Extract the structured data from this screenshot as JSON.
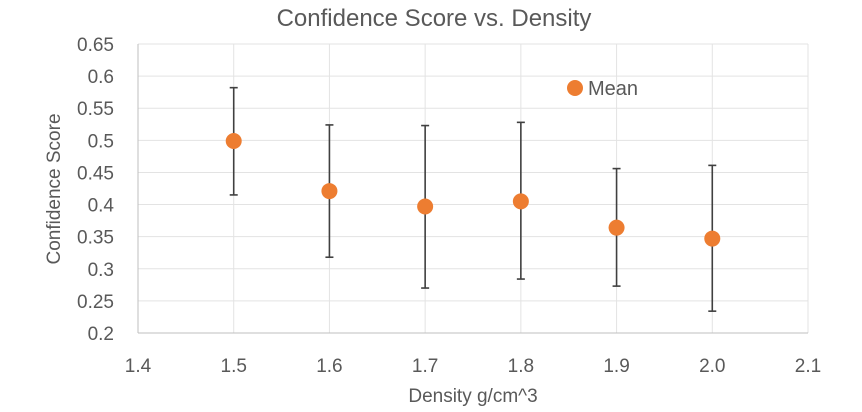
{
  "chart_data": {
    "type": "scatter",
    "title": "Confidence Score vs. Density",
    "xlabel": "Density g/cm^3",
    "ylabel": "Confidence Score",
    "xlim": [
      1.4,
      2.1
    ],
    "ylim": [
      0.2,
      0.65
    ],
    "x_ticks": [
      "1.4",
      "1.5",
      "1.6",
      "1.7",
      "1.8",
      "1.9",
      "2.0",
      "2.1"
    ],
    "y_ticks": [
      "0.2",
      "0.25",
      "0.3",
      "0.35",
      "0.4",
      "0.45",
      "0.5",
      "0.55",
      "0.6",
      "0.65"
    ],
    "grid": true,
    "legend_position": "top-right",
    "series": [
      {
        "name": "Mean",
        "color": "#ED7D31",
        "x": [
          1.5,
          1.6,
          1.7,
          1.8,
          1.9,
          2.0
        ],
        "y": [
          0.499,
          0.421,
          0.397,
          0.405,
          0.364,
          0.347
        ],
        "error_low": [
          0.415,
          0.318,
          0.27,
          0.284,
          0.273,
          0.234
        ],
        "error_high": [
          0.582,
          0.524,
          0.523,
          0.528,
          0.456,
          0.461
        ]
      }
    ]
  }
}
